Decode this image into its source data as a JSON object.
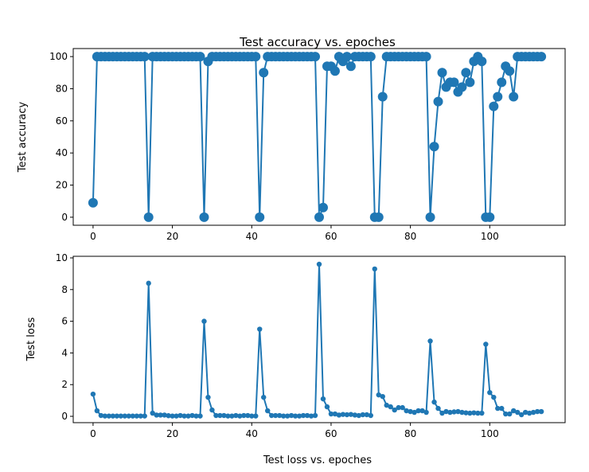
{
  "chart_data": [
    {
      "type": "line",
      "title": "Test accuracy vs. epoches",
      "xlabel": "",
      "ylabel": "Test accuracy",
      "xlim": [
        -5,
        119
      ],
      "ylim": [
        -5,
        105
      ],
      "xticks": [
        0,
        20,
        40,
        60,
        80,
        100
      ],
      "yticks": [
        0,
        20,
        40,
        60,
        80,
        100
      ],
      "marker": "large-circle",
      "color": "#1f77b4",
      "grid": false,
      "y": [
        9,
        100,
        100,
        100,
        100,
        100,
        100,
        100,
        100,
        100,
        100,
        100,
        100,
        100,
        0,
        100,
        100,
        100,
        100,
        100,
        100,
        100,
        100,
        100,
        100,
        100,
        100,
        100,
        0,
        97,
        100,
        100,
        100,
        100,
        100,
        100,
        100,
        100,
        100,
        100,
        100,
        100,
        0,
        90,
        100,
        100,
        100,
        100,
        100,
        100,
        100,
        100,
        100,
        100,
        100,
        100,
        100,
        0,
        6,
        94,
        94,
        91,
        100,
        97,
        100,
        94,
        100,
        100,
        100,
        100,
        100,
        0,
        0,
        75,
        100,
        100,
        100,
        100,
        100,
        100,
        100,
        100,
        100,
        100,
        100,
        0,
        44,
        72,
        90,
        81,
        84,
        84,
        78,
        81,
        90,
        84,
        97,
        100,
        97,
        0,
        0,
        69,
        75,
        84,
        94,
        91,
        75,
        100,
        100,
        100,
        100,
        100,
        100,
        100
      ]
    },
    {
      "type": "line",
      "title": "",
      "xlabel": "Test loss vs. epoches",
      "ylabel": "Test loss",
      "xlim": [
        -5,
        119
      ],
      "ylim": [
        -0.4,
        10.1
      ],
      "xticks": [
        0,
        20,
        40,
        60,
        80,
        100
      ],
      "yticks": [
        0,
        2,
        4,
        6,
        8,
        10
      ],
      "marker": "small-circle",
      "color": "#1f77b4",
      "grid": false,
      "y": [
        1.4,
        0.35,
        0.05,
        0.02,
        0.02,
        0.02,
        0.02,
        0.02,
        0.02,
        0.02,
        0.02,
        0.02,
        0.02,
        0.02,
        8.4,
        0.2,
        0.08,
        0.08,
        0.08,
        0.04,
        0.02,
        0.02,
        0.05,
        0.02,
        0.02,
        0.05,
        0.02,
        0.02,
        6.0,
        1.2,
        0.4,
        0.05,
        0.05,
        0.05,
        0.02,
        0.02,
        0.05,
        0.02,
        0.05,
        0.05,
        0.02,
        0.02,
        5.5,
        1.2,
        0.35,
        0.05,
        0.05,
        0.05,
        0.02,
        0.02,
        0.05,
        0.02,
        0.02,
        0.05,
        0.05,
        0.02,
        0.05,
        9.6,
        1.1,
        0.6,
        0.15,
        0.15,
        0.08,
        0.12,
        0.1,
        0.12,
        0.08,
        0.05,
        0.1,
        0.1,
        0.05,
        9.3,
        1.35,
        1.25,
        0.7,
        0.6,
        0.4,
        0.55,
        0.55,
        0.35,
        0.3,
        0.25,
        0.35,
        0.35,
        0.25,
        4.75,
        0.9,
        0.5,
        0.2,
        0.3,
        0.25,
        0.28,
        0.3,
        0.25,
        0.22,
        0.2,
        0.22,
        0.2,
        0.2,
        4.55,
        1.5,
        1.2,
        0.5,
        0.5,
        0.15,
        0.15,
        0.35,
        0.25,
        0.1,
        0.25,
        0.2,
        0.25,
        0.3,
        0.3
      ]
    }
  ]
}
